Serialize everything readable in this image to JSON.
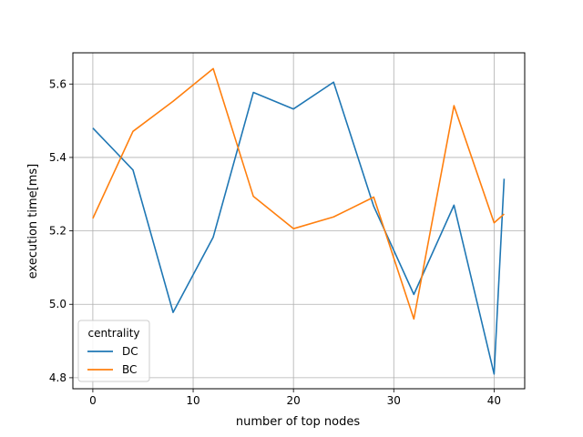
{
  "chart_data": {
    "type": "line",
    "title": "",
    "xlabel": "number of top nodes",
    "ylabel": "execution time[ms]",
    "xlim": [
      -1.99,
      43.05
    ],
    "ylim": [
      4.77,
      5.685
    ],
    "x_ticks": [
      0,
      10,
      20,
      30,
      40
    ],
    "y_ticks": [
      4.8,
      5.0,
      5.2,
      5.4,
      5.6
    ],
    "y_tick_labels": [
      "4.8",
      "5.0",
      "5.2",
      "5.4",
      "5.6"
    ],
    "grid": true,
    "legend": {
      "title": "centrality",
      "placement": "lower-left"
    },
    "x": [
      0,
      4,
      8,
      12,
      16,
      20,
      24,
      28,
      32,
      36,
      40,
      41
    ],
    "series": [
      {
        "name": "DC",
        "color": "#1f77b4",
        "values": [
          5.48,
          5.366,
          4.978,
          5.183,
          5.577,
          5.532,
          5.605,
          5.267,
          5.027,
          5.27,
          4.81,
          5.342
        ]
      },
      {
        "name": "BC",
        "color": "#ff7f0e",
        "values": [
          5.234,
          5.471,
          5.553,
          5.642,
          5.294,
          5.206,
          5.238,
          5.292,
          4.96,
          5.541,
          5.222,
          5.246
        ]
      }
    ]
  }
}
